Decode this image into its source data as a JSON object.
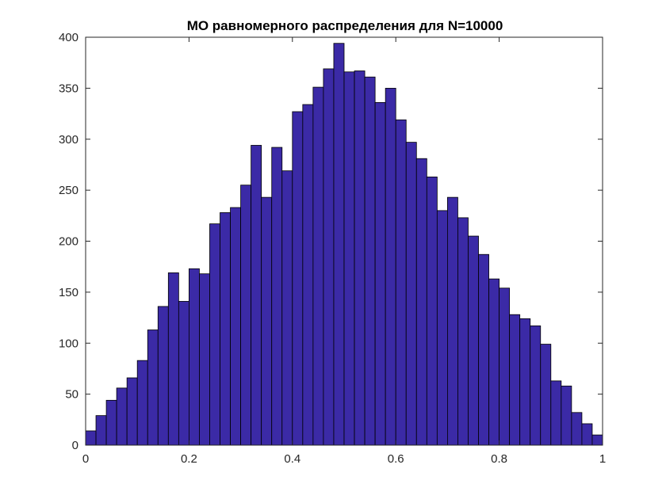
{
  "chart_data": {
    "type": "bar",
    "title": "МО равномерного распределения для N=10000",
    "xlabel": "",
    "ylabel": "",
    "xlim": [
      0,
      1
    ],
    "ylim": [
      0,
      400
    ],
    "bin_width": 0.02,
    "bin_start": 0.01,
    "bar_color": "#3b2aa6",
    "grid": false,
    "x_ticks": [
      0,
      0.2,
      0.4,
      0.6,
      0.8,
      1
    ],
    "x_tick_labels": [
      "0",
      "0.2",
      "0.4",
      "0.6",
      "0.8",
      "1"
    ],
    "y_ticks": [
      0,
      50,
      100,
      150,
      200,
      250,
      300,
      350,
      400
    ],
    "y_tick_labels": [
      "0",
      "50",
      "100",
      "150",
      "200",
      "250",
      "300",
      "350",
      "400"
    ],
    "values": [
      14,
      29,
      44,
      56,
      66,
      83,
      113,
      136,
      169,
      141,
      173,
      168,
      217,
      228,
      233,
      255,
      294,
      243,
      292,
      269,
      327,
      334,
      351,
      369,
      394,
      366,
      367,
      361,
      336,
      350,
      319,
      297,
      281,
      263,
      230,
      243,
      223,
      205,
      187,
      163,
      154,
      128,
      124,
      117,
      99,
      63,
      58,
      32,
      21,
      10
    ]
  }
}
